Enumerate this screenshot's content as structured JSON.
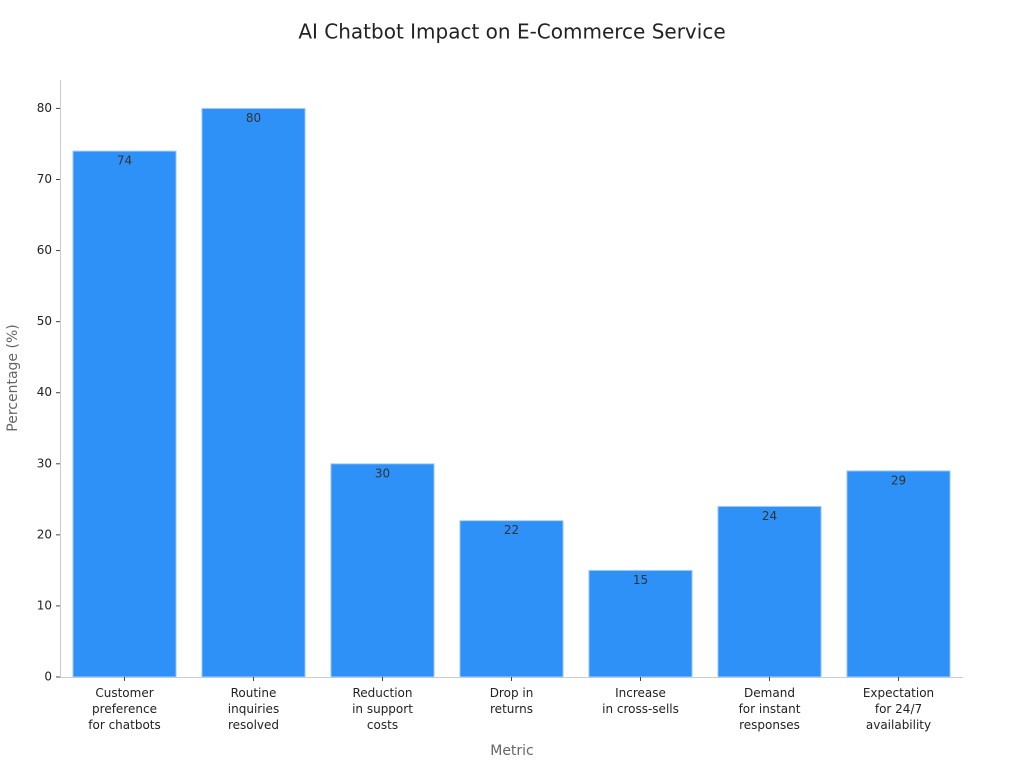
{
  "chart_data": {
    "type": "bar",
    "title": "AI Chatbot Impact on E-Commerce Service",
    "x_label": "Metric",
    "y_label": "Percentage (%)",
    "categories": [
      [
        "Customer",
        "preference",
        "for chatbots"
      ],
      [
        "Routine",
        "inquiries",
        "resolved"
      ],
      [
        "Reduction",
        "in support",
        "costs"
      ],
      [
        "Drop in",
        "returns"
      ],
      [
        "Increase",
        "in cross-sells"
      ],
      [
        "Demand",
        "for instant",
        "responses"
      ],
      [
        "Expectation",
        "for 24/7",
        "availability"
      ]
    ],
    "values": [
      74,
      80,
      30,
      22,
      15,
      24,
      29
    ],
    "color": "#2e91f7",
    "ylim": [
      0,
      84
    ],
    "yticks": [
      0,
      10,
      20,
      30,
      40,
      50,
      60,
      70,
      80
    ],
    "grid": false
  }
}
